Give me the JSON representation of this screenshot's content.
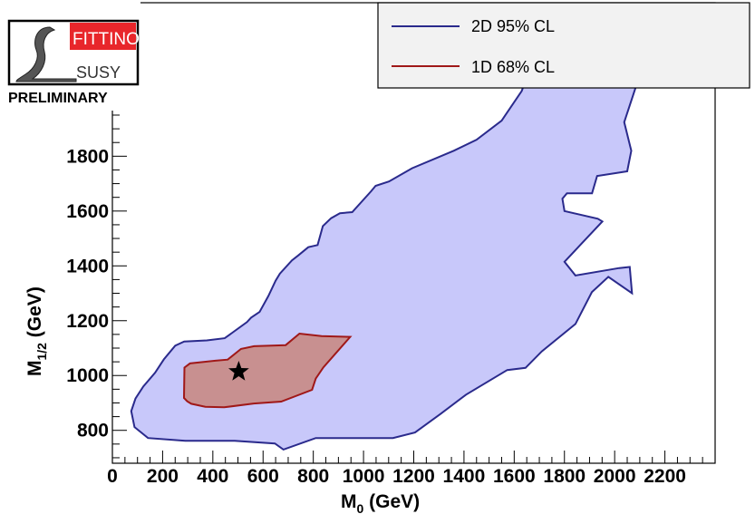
{
  "logo": {
    "word_top": "FITTINO",
    "word_bottom": "SUSY",
    "caption": "PRELIMINARY"
  },
  "colors": {
    "region_2d_fill": "#c8c8fa",
    "region_2d_line": "#2a2a8c",
    "region_1d_fill": "#c89090",
    "region_1d_line": "#a01818",
    "logo_red": "#e8262b"
  },
  "chart_data": {
    "type": "area",
    "xlabel": "M",
    "xlabel_sub": "0",
    "xlabel_unit": " (GeV)",
    "ylabel": "M",
    "ylabel_sub": "1/2",
    "ylabel_unit": " (GeV)",
    "xlim": [
      0,
      2400
    ],
    "ylim": [
      680,
      2360
    ],
    "x_ticks": [
      0,
      200,
      400,
      600,
      800,
      1000,
      1200,
      1400,
      1600,
      1800,
      2000,
      2200
    ],
    "x_tick_labels": [
      "0",
      "200",
      "400",
      "600",
      "800",
      "1000",
      "1200",
      "1400",
      "1600",
      "1800",
      "2000",
      "2200"
    ],
    "y_ticks": [
      800,
      1000,
      1200,
      1400,
      1600,
      1800,
      2000,
      2200
    ],
    "y_tick_labels": [
      "800",
      "1000",
      "1200",
      "1400",
      "1600",
      "1800",
      "2000",
      "2200"
    ],
    "grid": false,
    "legend_position": "top-right",
    "series": [
      {
        "name": "2D 95% CL",
        "kind": "contour",
        "points": [
          [
            75,
            870
          ],
          [
            88,
            812
          ],
          [
            142,
            772
          ],
          [
            290,
            762
          ],
          [
            487,
            762
          ],
          [
            647,
            752
          ],
          [
            681,
            730
          ],
          [
            810,
            772
          ],
          [
            1117,
            772
          ],
          [
            1205,
            792
          ],
          [
            1307,
            860
          ],
          [
            1408,
            930
          ],
          [
            1572,
            1020
          ],
          [
            1645,
            1028
          ],
          [
            1710,
            1088
          ],
          [
            1844,
            1188
          ],
          [
            1909,
            1304
          ],
          [
            1975,
            1360
          ],
          [
            2069,
            1300
          ],
          [
            2060,
            1396
          ],
          [
            2018,
            1392
          ],
          [
            1844,
            1365
          ],
          [
            1800,
            1415
          ],
          [
            1867,
            1480
          ],
          [
            1951,
            1562
          ],
          [
            1933,
            1572
          ],
          [
            1800,
            1600
          ],
          [
            1792,
            1645
          ],
          [
            1810,
            1665
          ],
          [
            1910,
            1665
          ],
          [
            1930,
            1728
          ],
          [
            2050,
            1745
          ],
          [
            2066,
            1820
          ],
          [
            2038,
            1924
          ],
          [
            2094,
            2080
          ],
          [
            2058,
            2092
          ],
          [
            2046,
            2100
          ],
          [
            2018,
            2200
          ],
          [
            2006,
            2296
          ],
          [
            1910,
            2295
          ],
          [
            1890,
            2290
          ],
          [
            1770,
            2200
          ],
          [
            1703,
            2180
          ],
          [
            1663,
            2120
          ],
          [
            1630,
            2038
          ],
          [
            1550,
            1930
          ],
          [
            1450,
            1860
          ],
          [
            1359,
            1820
          ],
          [
            1193,
            1756
          ],
          [
            1101,
            1708
          ],
          [
            1048,
            1692
          ],
          [
            1030,
            1672
          ],
          [
            955,
            1596
          ],
          [
            906,
            1592
          ],
          [
            871,
            1574
          ],
          [
            838,
            1545
          ],
          [
            817,
            1476
          ],
          [
            780,
            1468
          ],
          [
            740,
            1438
          ],
          [
            715,
            1420
          ],
          [
            667,
            1372
          ],
          [
            650,
            1346
          ],
          [
            621,
            1290
          ],
          [
            586,
            1232
          ],
          [
            552,
            1211
          ],
          [
            536,
            1195
          ],
          [
            447,
            1136
          ],
          [
            376,
            1128
          ],
          [
            286,
            1124
          ],
          [
            250,
            1109
          ],
          [
            205,
            1059
          ],
          [
            170,
            1010
          ],
          [
            123,
            960
          ],
          [
            92,
            916
          ],
          [
            75,
            870
          ]
        ]
      },
      {
        "name": "1D 68% CL",
        "kind": "contour",
        "points": [
          [
            285,
            918
          ],
          [
            298,
            906
          ],
          [
            314,
            897
          ],
          [
            370,
            886
          ],
          [
            445,
            884
          ],
          [
            563,
            898
          ],
          [
            672,
            905
          ],
          [
            795,
            948
          ],
          [
            810,
            989
          ],
          [
            840,
            1030
          ],
          [
            947,
            1141
          ],
          [
            833,
            1144
          ],
          [
            745,
            1153
          ],
          [
            690,
            1111
          ],
          [
            564,
            1107
          ],
          [
            512,
            1097
          ],
          [
            459,
            1058
          ],
          [
            410,
            1054
          ],
          [
            309,
            1044
          ],
          [
            287,
            1029
          ],
          [
            285,
            918
          ]
        ]
      }
    ],
    "best_fit_point": [
      503,
      1014
    ]
  }
}
